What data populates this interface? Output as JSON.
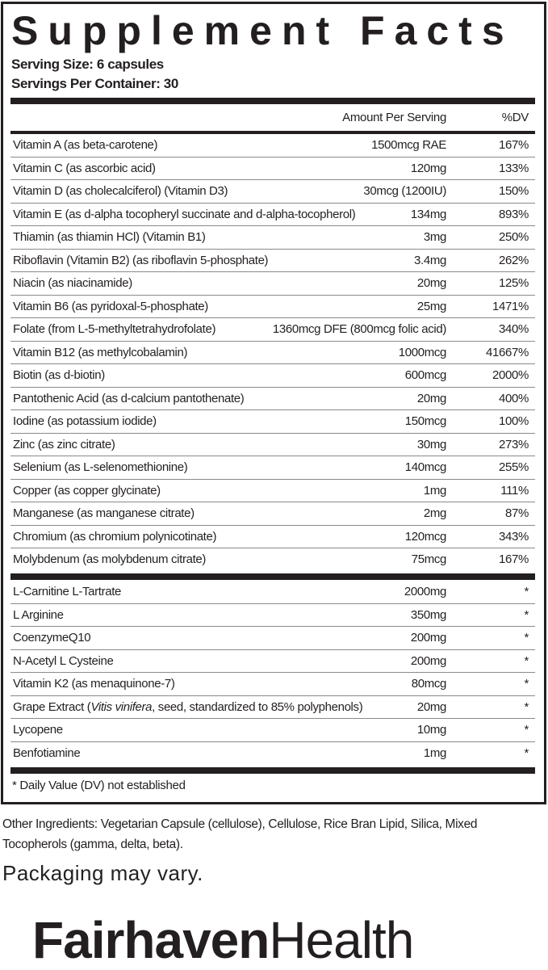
{
  "title": "Supplement Facts",
  "serving_size": "Serving Size: 6 capsules",
  "servings_per_container": "Servings Per Container: 30",
  "header": {
    "amount": "Amount Per Serving",
    "dv": "%DV"
  },
  "vitamins": [
    {
      "name": "Vitamin A (as beta-carotene)",
      "amount": "1500mcg RAE",
      "dv": "167%"
    },
    {
      "name": "Vitamin C (as ascorbic acid)",
      "amount": "120mg",
      "dv": "133%"
    },
    {
      "name": "Vitamin D (as cholecalciferol) (Vitamin D3)",
      "amount": "30mcg (1200IU)",
      "dv": "150%"
    },
    {
      "name": "Vitamin E (as d-alpha tocopheryl succinate and d-alpha-tocopherol)",
      "amount": "134mg",
      "dv": "893%"
    },
    {
      "name": "Thiamin (as thiamin HCl) (Vitamin B1)",
      "amount": "3mg",
      "dv": "250%"
    },
    {
      "name": "Riboflavin (Vitamin B2) (as riboflavin 5-phosphate)",
      "amount": "3.4mg",
      "dv": "262%"
    },
    {
      "name": "Niacin (as niacinamide)",
      "amount": "20mg",
      "dv": "125%"
    },
    {
      "name": "Vitamin B6 (as pyridoxal-5-phosphate)",
      "amount": "25mg",
      "dv": "1471%"
    },
    {
      "name": "Folate (from L-5-methyltetrahydrofolate)",
      "amount": "1360mcg DFE (800mcg folic acid)",
      "dv": "340%"
    },
    {
      "name": "Vitamin B12 (as methylcobalamin)",
      "amount": "1000mcg",
      "dv": "41667%"
    },
    {
      "name": "Biotin (as d-biotin)",
      "amount": "600mcg",
      "dv": "2000%"
    },
    {
      "name": "Pantothenic Acid (as d-calcium pantothenate)",
      "amount": "20mg",
      "dv": "400%"
    },
    {
      "name": "Iodine (as potassium iodide)",
      "amount": "150mcg",
      "dv": "100%"
    },
    {
      "name": "Zinc (as zinc citrate)",
      "amount": "30mg",
      "dv": "273%"
    },
    {
      "name": "Selenium (as L-selenomethionine)",
      "amount": "140mcg",
      "dv": "255%"
    },
    {
      "name": "Copper (as copper glycinate)",
      "amount": "1mg",
      "dv": "111%"
    },
    {
      "name": "Manganese (as manganese citrate)",
      "amount": "2mg",
      "dv": "87%"
    },
    {
      "name": "Chromium (as chromium polynicotinate)",
      "amount": "120mcg",
      "dv": "343%"
    },
    {
      "name": "Molybdenum (as molybdenum citrate)",
      "amount": "75mcg",
      "dv": "167%"
    }
  ],
  "others": [
    {
      "name": "L-Carnitine L-Tartrate",
      "amount": "2000mg",
      "dv": "*"
    },
    {
      "name": "L Arginine",
      "amount": "350mg",
      "dv": "*"
    },
    {
      "name": "CoenzymeQ10",
      "amount": "200mg",
      "dv": "*"
    },
    {
      "name": "N-Acetyl L Cysteine",
      "amount": "200mg",
      "dv": "*"
    },
    {
      "name": "Vitamin K2 (as menaquinone-7)",
      "amount": "80mcg",
      "dv": "*"
    },
    {
      "name": "Grape Extract (",
      "italic": "Vitis vinifera",
      "suffix": ", seed, standardized to 85% polyphenols)",
      "amount": "20mg",
      "dv": "*"
    },
    {
      "name": "Lycopene",
      "amount": "10mg",
      "dv": "*"
    },
    {
      "name": "Benfotiamine",
      "amount": "1mg",
      "dv": "*"
    }
  ],
  "footnote": "* Daily Value (DV) not established",
  "other_ingredients": "Other Ingredients:  Vegetarian Capsule (cellulose), Cellulose, Rice Bran Lipid, Silica, Mixed Tocopherols (gamma, delta, beta).",
  "packaging_note": "Packaging may vary.",
  "logo": {
    "bold": "Fairhaven",
    "light": "Health"
  }
}
